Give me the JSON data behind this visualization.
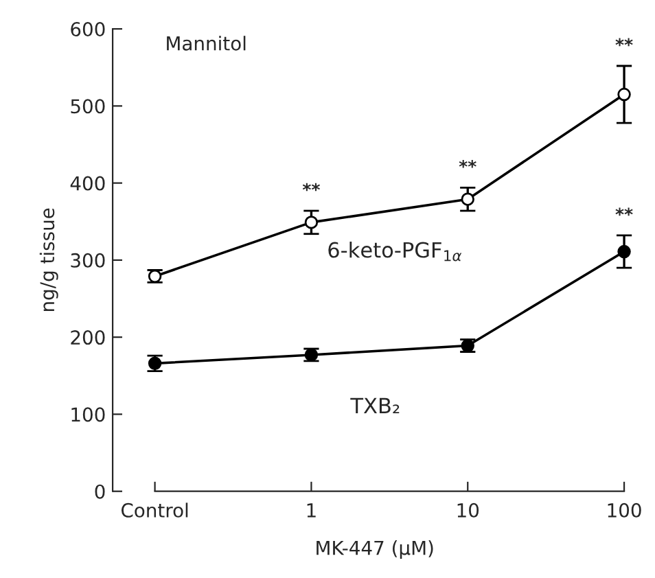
{
  "chart_data": {
    "type": "line",
    "xlabel": "MK-447 (μM)",
    "ylabel": "ng/g tissue",
    "categories": [
      "Control",
      "1",
      "10",
      "100"
    ],
    "series": [
      {
        "name": "6-keto-PGF$_{1α}$",
        "color": "#000000",
        "values": [
          279,
          349,
          379,
          515
        ],
        "errors": [
          8,
          15,
          15,
          37
        ]
      },
      {
        "name": "TXB₂",
        "color": "#000000",
        "values": [
          166,
          177,
          189,
          311
        ],
        "errors": [
          10,
          8,
          8,
          21
        ]
      }
    ],
    "ylim": [
      0,
      600
    ],
    "yticks": [
      0,
      100,
      200,
      300,
      400,
      500,
      600
    ],
    "marker": "circle",
    "line_style": "solid",
    "grid": false,
    "legend": false,
    "annotations": [
      "Mannitol",
      {
        "text": "**",
        "x": "1",
        "y": 349
      },
      {
        "text": "**",
        "x": "10",
        "y": 379
      },
      {
        "text": "**",
        "x": "100",
        "y": 515
      },
      {
        "text": "**",
        "x": "100",
        "y": 311
      }
    ]
  }
}
